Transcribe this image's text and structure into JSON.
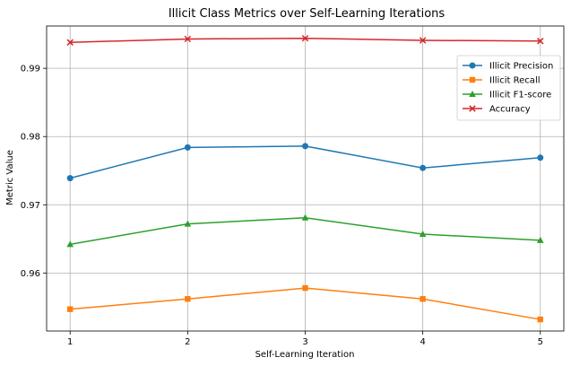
{
  "chart_data": {
    "type": "line",
    "title": "Illicit Class Metrics over Self-Learning Iterations",
    "xlabel": "Self-Learning Iteration",
    "ylabel": "Metric Value",
    "x": [
      1,
      2,
      3,
      4,
      5
    ],
    "xticks": [
      "1",
      "2",
      "3",
      "4",
      "5"
    ],
    "yticks": [
      "0.96",
      "0.97",
      "0.98",
      "0.99"
    ],
    "ylim": [
      0.9515,
      0.9962
    ],
    "grid": true,
    "legend_position": "upper-right",
    "series": [
      {
        "name": "Illicit Precision",
        "values": [
          0.9739,
          0.9784,
          0.9786,
          0.9754,
          0.9769
        ],
        "color": "#1f77b4",
        "marker": "circle"
      },
      {
        "name": "Illicit Recall",
        "values": [
          0.9547,
          0.9562,
          0.9578,
          0.9562,
          0.9532
        ],
        "color": "#ff7f0e",
        "marker": "square"
      },
      {
        "name": "Illicit F1-score",
        "values": [
          0.9642,
          0.9672,
          0.9681,
          0.9657,
          0.9648
        ],
        "color": "#2ca02c",
        "marker": "triangle"
      },
      {
        "name": "Accuracy",
        "values": [
          0.9938,
          0.9943,
          0.9944,
          0.9941,
          0.994
        ],
        "color": "#d62728",
        "marker": "x"
      }
    ]
  }
}
